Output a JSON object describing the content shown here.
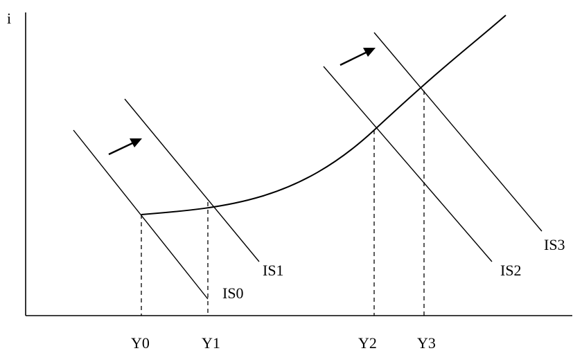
{
  "diagram": {
    "y_axis_label": "i",
    "is_curves": [
      {
        "label": "IS0"
      },
      {
        "label": "IS1"
      },
      {
        "label": "IS2"
      },
      {
        "label": "IS3"
      }
    ],
    "income_levels": [
      {
        "label": "Y0"
      },
      {
        "label": "Y1"
      },
      {
        "label": "Y2"
      },
      {
        "label": "Y3"
      }
    ],
    "colors": {
      "line": "#000000",
      "background": "#ffffff"
    }
  }
}
